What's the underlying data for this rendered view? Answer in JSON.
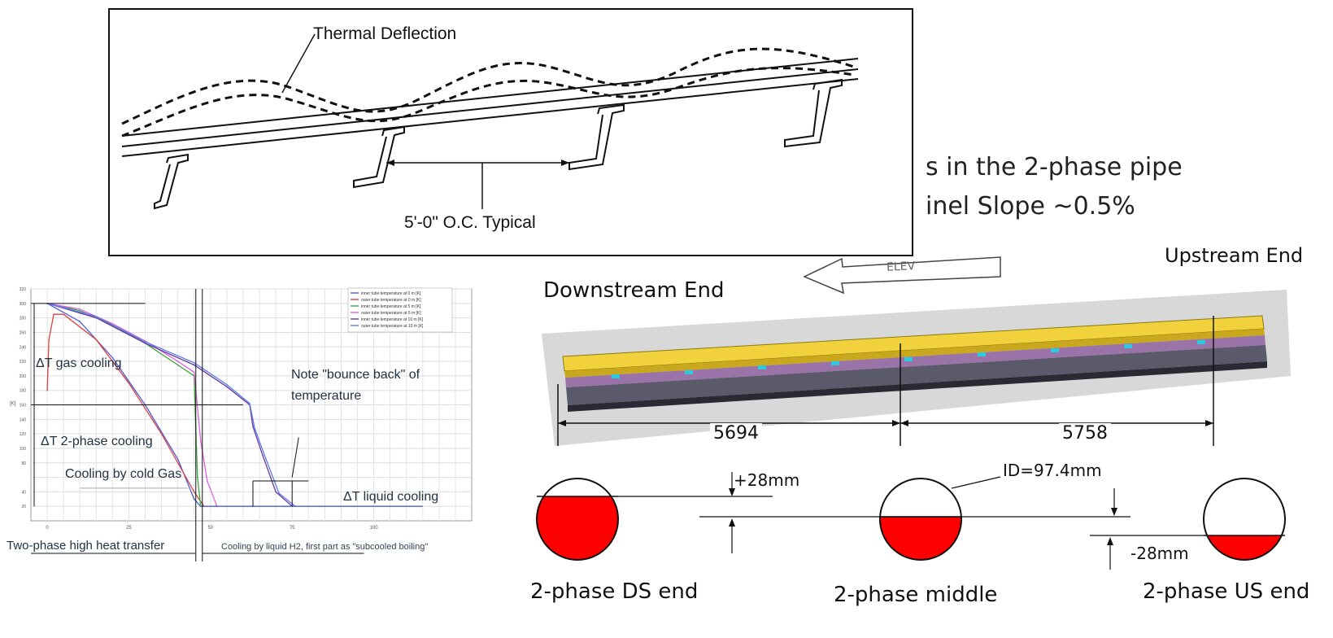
{
  "deflection_panel": {
    "label_thermal": "Thermal Deflection",
    "label_spacing": "5'-0\" O.C. Typical"
  },
  "slide_text": {
    "line1": "s in the 2-phase pipe",
    "line2": "inel Slope ~0.5%",
    "upstream_end": "Upstream End",
    "downstream_end": "Downstream End",
    "arrow_label": "ELEV"
  },
  "dimensions": {
    "left_span": "5694",
    "right_span": "5758"
  },
  "pipes": {
    "ds_label": "2-phase DS end",
    "middle_label": "2-phase middle",
    "us_label": "2-phase US end",
    "id_label": "ID=97.4mm",
    "plus_label": "+28mm",
    "minus_label": "-28mm",
    "fill_color": "#ff0000"
  },
  "chart_data": {
    "type": "line",
    "title": "",
    "ylabel": "[K]",
    "xlabel": "",
    "xlim": [
      -5,
      130
    ],
    "ylim": [
      0,
      320
    ],
    "x_ticks": [
      "0",
      "25",
      "50",
      "75",
      "100"
    ],
    "y_ticks": [
      "20",
      "40",
      "80",
      "100",
      "120",
      "140",
      "160",
      "180",
      "200",
      "220",
      "240",
      "260",
      "280",
      "300",
      "320"
    ],
    "legend": [
      "inner tube temperature at 0 m [K]",
      "outer tube temperature at 0 m [K]",
      "inner tube temperature at 5 m [K]",
      "outer tube temperature at 5 m [K]",
      "inner tube temperature at 10 m [K]",
      "outer tube temperature at 10 m [K]"
    ],
    "series": [
      {
        "name": "inner tube temperature at 0 m [K]",
        "color": "#4a5cd8",
        "x": [
          0,
          10,
          20,
          30,
          40,
          45,
          47
        ],
        "y": [
          300,
          275,
          225,
          160,
          85,
          30,
          20
        ]
      },
      {
        "name": "outer tube temperature at 0 m [K]",
        "color": "#e04040",
        "x": [
          0,
          0.5,
          2,
          5,
          15,
          25,
          35,
          45,
          48
        ],
        "y": [
          180,
          250,
          285,
          285,
          250,
          190,
          120,
          40,
          20
        ]
      },
      {
        "name": "inner tube temperature at 5 m [K]",
        "color": "#3aa83a",
        "x": [
          0,
          10,
          20,
          30,
          40,
          45,
          45.5,
          46,
          47
        ],
        "y": [
          300,
          290,
          270,
          245,
          215,
          200,
          130,
          60,
          20
        ]
      },
      {
        "name": "outer tube temperature at 5 m [K]",
        "color": "#e060e0",
        "x": [
          0,
          10,
          20,
          30,
          40,
          45,
          47,
          49,
          52
        ],
        "y": [
          300,
          292,
          272,
          248,
          220,
          205,
          110,
          55,
          20
        ]
      },
      {
        "name": "inner tube temperature at 10 m [K]",
        "color": "#6a3a9a",
        "x": [
          0,
          15,
          30,
          45,
          55,
          62,
          63,
          66,
          70,
          75
        ],
        "y": [
          300,
          280,
          245,
          215,
          185,
          160,
          130,
          90,
          40,
          20
        ]
      },
      {
        "name": "outer tube temperature at 10 m [K]",
        "color": "#5a7cf0",
        "x": [
          0,
          15,
          30,
          45,
          55,
          62,
          63.5,
          67,
          71,
          76
        ],
        "y": [
          300,
          282,
          247,
          218,
          188,
          162,
          128,
          85,
          38,
          20
        ]
      }
    ],
    "annotations": {
      "dt_gas": "ΔT gas cooling",
      "dt_two_phase": "ΔT 2-phase cooling",
      "cooling_cold_gas": "Cooling by cold Gas",
      "note_bounce_1": "Note \"bounce back\" of",
      "note_bounce_2": "temperature",
      "dt_liquid": "ΔT liquid cooling",
      "two_phase_high": "Two-phase high heat transfer",
      "cooling_liquid": "Cooling by liquid H2, first part as \"subcooled boiling\""
    }
  }
}
